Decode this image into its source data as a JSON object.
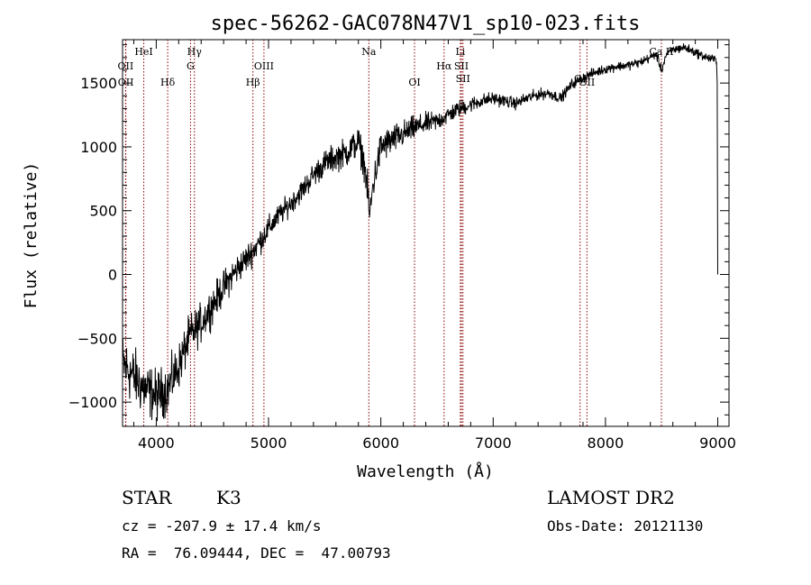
{
  "chart_data": {
    "type": "line",
    "title": "spec-56262-GAC078N47V1_sp10-023.fits",
    "xlabel": "Wavelength (Å)",
    "ylabel": "Flux (relative)",
    "xlim": [
      3700,
      9100
    ],
    "ylim": [
      -1190,
      1840
    ],
    "xticks": [
      4000,
      5000,
      6000,
      7000,
      8000,
      9000
    ],
    "yticks": [
      -1000,
      -500,
      0,
      500,
      1000,
      1500
    ],
    "grid": false,
    "line_color": "#000000",
    "marker_color": "#8b0000",
    "spectral_lines": [
      {
        "label": "OII",
        "x": 3727,
        "row": 2
      },
      {
        "label": "OII",
        "x": 3729,
        "row": 3
      },
      {
        "label": "HeI",
        "x": 3889,
        "row": 1
      },
      {
        "label": "Hδ",
        "x": 4102,
        "row": 3
      },
      {
        "label": "Hγ",
        "x": 4340,
        "row": 1
      },
      {
        "label": "G",
        "x": 4305,
        "row": 2
      },
      {
        "label": "Hβ",
        "x": 4861,
        "row": 3
      },
      {
        "label": "OIII",
        "x": 4959,
        "row": 2
      },
      {
        "label": "Na",
        "x": 5893,
        "row": 1
      },
      {
        "label": "OI",
        "x": 6300,
        "row": 3
      },
      {
        "label": "Hα",
        "x": 6563,
        "row": 2
      },
      {
        "label": "SII",
        "x": 6717,
        "row": 2
      },
      {
        "label": "Li",
        "x": 6708,
        "row": 1
      },
      {
        "label": "SII",
        "x": 6731,
        "row": 0
      },
      {
        "label": "OI",
        "x": 7774,
        "row": 0
      },
      {
        "label": "OII",
        "x": 7835,
        "row": 3
      },
      {
        "label": "Ca II",
        "x": 8498,
        "row": 1
      }
    ],
    "continuum": [
      [
        3700,
        -700
      ],
      [
        3800,
        -800
      ],
      [
        3900,
        -900
      ],
      [
        4000,
        -950
      ],
      [
        4100,
        -900
      ],
      [
        4200,
        -720
      ],
      [
        4300,
        -480
      ],
      [
        4400,
        -380
      ],
      [
        4500,
        -240
      ],
      [
        4600,
        -100
      ],
      [
        4700,
        20
      ],
      [
        4800,
        120
      ],
      [
        4900,
        230
      ],
      [
        5000,
        360
      ],
      [
        5100,
        470
      ],
      [
        5200,
        560
      ],
      [
        5300,
        660
      ],
      [
        5400,
        780
      ],
      [
        5500,
        870
      ],
      [
        5600,
        920
      ],
      [
        5700,
        960
      ],
      [
        5800,
        1040
      ],
      [
        5850,
        880
      ],
      [
        5880,
        680
      ],
      [
        5900,
        450
      ],
      [
        5930,
        700
      ],
      [
        6000,
        1000
      ],
      [
        6100,
        1050
      ],
      [
        6200,
        1100
      ],
      [
        6300,
        1150
      ],
      [
        6400,
        1180
      ],
      [
        6500,
        1200
      ],
      [
        6600,
        1250
      ],
      [
        6700,
        1300
      ],
      [
        6800,
        1330
      ],
      [
        6900,
        1360
      ],
      [
        7000,
        1380
      ],
      [
        7100,
        1360
      ],
      [
        7200,
        1340
      ],
      [
        7300,
        1380
      ],
      [
        7400,
        1410
      ],
      [
        7500,
        1420
      ],
      [
        7600,
        1380
      ],
      [
        7700,
        1490
      ],
      [
        7800,
        1540
      ],
      [
        7900,
        1580
      ],
      [
        8000,
        1610
      ],
      [
        8100,
        1630
      ],
      [
        8200,
        1640
      ],
      [
        8300,
        1660
      ],
      [
        8400,
        1700
      ],
      [
        8450,
        1730
      ],
      [
        8500,
        1600
      ],
      [
        8540,
        1720
      ],
      [
        8600,
        1760
      ],
      [
        8700,
        1780
      ],
      [
        8800,
        1740
      ],
      [
        8900,
        1700
      ],
      [
        8990,
        1680
      ]
    ],
    "noise": [
      [
        3700,
        260
      ],
      [
        4000,
        220
      ],
      [
        4300,
        180
      ],
      [
        4700,
        130
      ],
      [
        5200,
        90
      ],
      [
        5900,
        140
      ],
      [
        6000,
        140
      ],
      [
        6400,
        90
      ],
      [
        7000,
        55
      ],
      [
        8000,
        40
      ],
      [
        9000,
        40
      ]
    ]
  },
  "info": {
    "obj_class": "STAR",
    "subclass": "K3",
    "survey": "LAMOST DR2",
    "cz": "cz = -207.9 ± 17.4 km/s",
    "obs_date": "Obs-Date: 20121130",
    "coords": "RA =  76.09444, DEC =  47.00793"
  }
}
